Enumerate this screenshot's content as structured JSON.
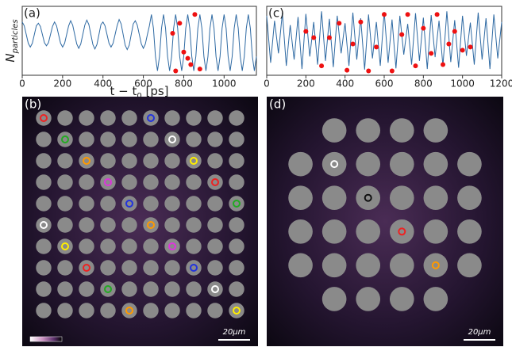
{
  "chart_data": [
    {
      "type": "line",
      "panel_label": "(a)",
      "ylabel": [
        "N",
        "particles"
      ],
      "xlabel": [
        "t − t",
        "0",
        " [ps]"
      ],
      "x": [
        0,
        10,
        20,
        30,
        40,
        50,
        60,
        70,
        80,
        90,
        100,
        110,
        120,
        130,
        140,
        150,
        160,
        170,
        180,
        190,
        200,
        210,
        220,
        230,
        240,
        250,
        260,
        270,
        280,
        290,
        300,
        310,
        320,
        330,
        340,
        350,
        360,
        370,
        380,
        390,
        400,
        410,
        420,
        430,
        440,
        450,
        460,
        470,
        480,
        490,
        500,
        510,
        520,
        530,
        540,
        550,
        560,
        570,
        580,
        590,
        600,
        610,
        620,
        630,
        640,
        650,
        660,
        670,
        680,
        690,
        700,
        710,
        720,
        730,
        740,
        750,
        760,
        770,
        780,
        790,
        800,
        810,
        820,
        830,
        840,
        850,
        860,
        870,
        880,
        890,
        900,
        910,
        920,
        930,
        940,
        950,
        960,
        970,
        980,
        990,
        1000,
        1010,
        1020,
        1030,
        1040,
        1050,
        1060,
        1070,
        1080,
        1090,
        1100,
        1110,
        1120,
        1130,
        1140,
        1150,
        1160
      ],
      "series": [
        {
          "color": "#2f6aa3",
          "values": [
            0.8,
            0.74,
            0.6,
            0.46,
            0.4,
            0.46,
            0.6,
            0.74,
            0.78,
            0.73,
            0.6,
            0.47,
            0.42,
            0.47,
            0.6,
            0.73,
            0.8,
            0.74,
            0.6,
            0.46,
            0.4,
            0.46,
            0.6,
            0.74,
            0.82,
            0.75,
            0.6,
            0.45,
            0.38,
            0.45,
            0.6,
            0.75,
            0.83,
            0.76,
            0.6,
            0.44,
            0.37,
            0.44,
            0.6,
            0.76,
            0.8,
            0.74,
            0.6,
            0.46,
            0.4,
            0.46,
            0.6,
            0.74,
            0.84,
            0.77,
            0.6,
            0.43,
            0.36,
            0.43,
            0.6,
            0.77,
            0.82,
            0.75,
            0.6,
            0.45,
            0.38,
            0.45,
            0.6,
            0.74,
            0.92,
            0.7,
            0.25,
            0.02,
            0.25,
            0.7,
            0.92,
            0.7,
            0.25,
            0.02,
            0.25,
            0.7,
            0.92,
            0.7,
            0.25,
            0.02,
            0.25,
            0.7,
            0.92,
            0.7,
            0.25,
            0.02,
            0.25,
            0.7,
            0.92,
            0.7,
            0.25,
            0.02,
            0.25,
            0.7,
            0.92,
            0.7,
            0.25,
            0.02,
            0.25,
            0.7,
            0.92,
            0.7,
            0.25,
            0.02,
            0.25,
            0.7,
            0.92,
            0.7,
            0.25,
            0.02,
            0.25,
            0.7,
            0.92,
            0.7,
            0.25,
            0.02,
            0.25
          ]
        }
      ],
      "points": {
        "color": "#ee1111",
        "x": [
          745,
          760,
          780,
          800,
          820,
          835,
          855,
          880
        ],
        "y": [
          0.62,
          0.02,
          0.78,
          0.32,
          0.22,
          0.12,
          0.92,
          0.05
        ]
      },
      "xlim": [
        0,
        1160
      ],
      "ylim": [
        -0.05,
        1.05
      ],
      "xticks": [
        0,
        200,
        400,
        600,
        800,
        1000
      ]
    },
    {
      "type": "line",
      "panel_label": "(c)",
      "x": [
        0,
        20,
        40,
        60,
        80,
        100,
        120,
        140,
        160,
        180,
        200,
        220,
        240,
        260,
        280,
        300,
        320,
        340,
        360,
        380,
        400,
        420,
        440,
        460,
        480,
        500,
        520,
        540,
        560,
        580,
        600,
        620,
        640,
        660,
        680,
        700,
        720,
        740,
        760,
        780,
        800,
        820,
        840,
        860,
        880,
        900,
        920,
        940,
        960,
        980,
        1000,
        1020,
        1040,
        1060,
        1080,
        1100,
        1120,
        1140,
        1160,
        1180,
        1200
      ],
      "series": [
        {
          "color": "#2f6aa3",
          "values": [
            0.9,
            0.15,
            0.82,
            0.3,
            0.95,
            0.1,
            0.75,
            0.2,
            0.88,
            0.05,
            0.93,
            0.25,
            0.8,
            0.12,
            0.97,
            0.18,
            0.85,
            0.08,
            0.9,
            0.3,
            0.78,
            0.1,
            0.95,
            0.2,
            0.86,
            0.04,
            0.92,
            0.22,
            0.8,
            0.1,
            0.96,
            0.15,
            0.84,
            0.06,
            0.9,
            0.28,
            0.77,
            0.12,
            0.94,
            0.18,
            0.87,
            0.05,
            0.91,
            0.24,
            0.82,
            0.1,
            0.97,
            0.16,
            0.83,
            0.07,
            0.9,
            0.26,
            0.79,
            0.12,
            0.95,
            0.2,
            0.86,
            0.05,
            0.92,
            0.22,
            0.8
          ]
        }
      ],
      "points": {
        "color": "#ee1111",
        "x": [
          200,
          240,
          280,
          320,
          370,
          410,
          440,
          480,
          520,
          560,
          600,
          640,
          690,
          720,
          760,
          800,
          840,
          870,
          900,
          930,
          960,
          1000,
          1040
        ],
        "y": [
          0.65,
          0.55,
          0.1,
          0.55,
          0.78,
          0.03,
          0.45,
          0.8,
          0.02,
          0.4,
          0.92,
          0.02,
          0.6,
          0.92,
          0.1,
          0.7,
          0.3,
          0.92,
          0.12,
          0.45,
          0.65,
          0.35,
          0.4
        ]
      },
      "xlim": [
        0,
        1200
      ],
      "ylim": [
        -0.05,
        1.05
      ],
      "xticks": [
        0,
        200,
        400,
        600,
        800,
        1000,
        1200
      ]
    }
  ],
  "images": [
    {
      "label": "(b)",
      "scale": "20μm"
    },
    {
      "label": "(d)",
      "scale": "20μm"
    }
  ]
}
